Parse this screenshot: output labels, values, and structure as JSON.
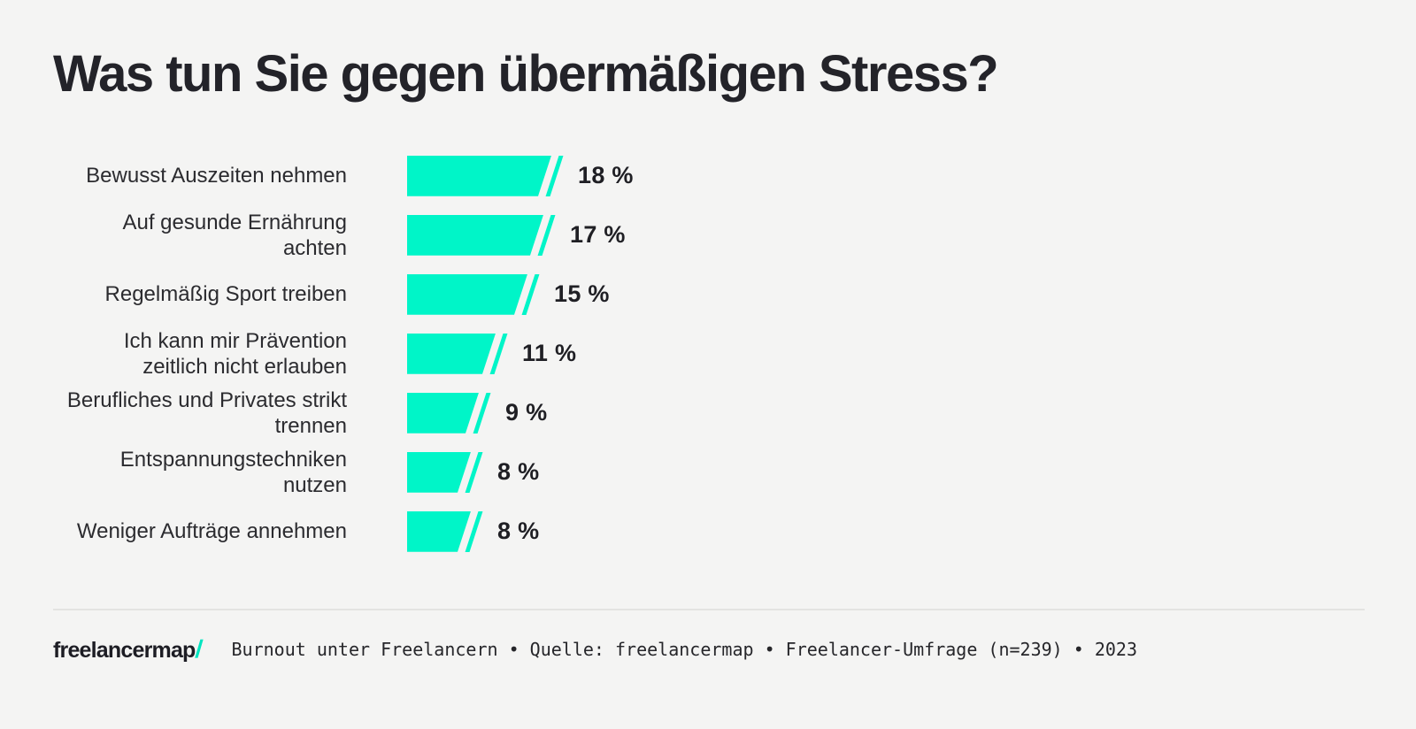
{
  "page": {
    "background_color": "#f4f4f3",
    "accent_color": "#00f5c8"
  },
  "title": "Was tun Sie gegen übermäßigen Stress?",
  "chart_data": {
    "type": "bar",
    "orientation": "horizontal",
    "title": "Was tun Sie gegen übermäßigen Stress?",
    "unit": "%",
    "categories": [
      "Bewusst Auszeiten nehmen",
      "Auf gesunde Ernährung achten",
      "Regelmäßig Sport treiben",
      "Ich kann mir Prävention zeitlich nicht erlauben",
      "Berufliches und Privates strikt trennen",
      "Entspannungstechniken nutzen",
      "Weniger Aufträge annehmen"
    ],
    "values": [
      18,
      17,
      15,
      11,
      9,
      8,
      8
    ],
    "value_labels": [
      "18 %",
      "17 %",
      "15 %",
      "11 %",
      "9 %",
      "8 %",
      "8 %"
    ],
    "bar_color": "#00f5c8",
    "xlim": [
      0,
      20
    ],
    "grid": false,
    "legend": false
  },
  "rows": [
    {
      "label": "Bewusst Auszeiten nehmen",
      "value": 18,
      "value_label": "18 %"
    },
    {
      "label": "Auf gesunde Ernährung\nachten",
      "value": 17,
      "value_label": "17 %"
    },
    {
      "label": "Regelmäßig Sport treiben",
      "value": 15,
      "value_label": "15 %"
    },
    {
      "label": "Ich kann mir Prävention\nzeitlich nicht erlauben",
      "value": 11,
      "value_label": "11 %"
    },
    {
      "label": "Berufliches und Privates strikt\ntrennen",
      "value": 9,
      "value_label": "9 %"
    },
    {
      "label": "Entspannungstechniken\nnutzen",
      "value": 8,
      "value_label": "8 %"
    },
    {
      "label": "Weniger Aufträge annehmen",
      "value": 8,
      "value_label": "8 %"
    }
  ],
  "footer": {
    "logo_text": "freelancermap",
    "logo_slash": "/",
    "caption": "Burnout unter Freelancern • Quelle: freelancermap • Freelancer-Umfrage (n=239) • 2023"
  }
}
